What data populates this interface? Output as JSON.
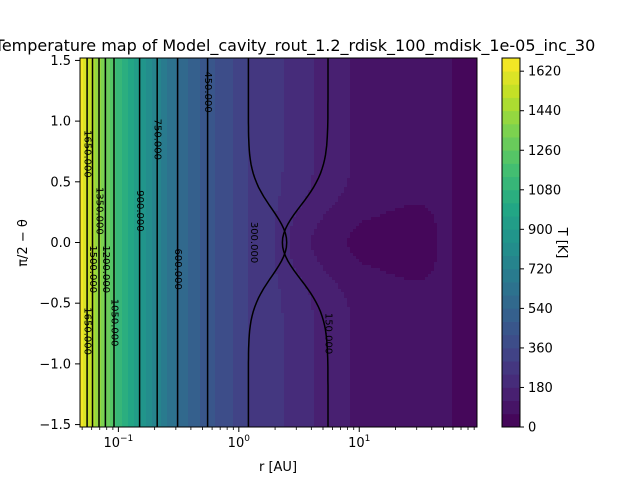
{
  "chart_data": {
    "type": "heatmap",
    "title": "Temperature map of Model_cavity_rout_1.2_rdisk_100_mdisk_1e-05_inc_30",
    "xlabel": "r [AU]",
    "ylabel": "π/2 − θ",
    "colorbar_label": "T [K]",
    "colormap": "viridis",
    "x_scale": "log",
    "xlim": [
      0.048,
      95
    ],
    "ylim": [
      -1.52,
      1.52
    ],
    "x_ticks": [
      {
        "value": 0.1,
        "base": "10",
        "exp": "−1"
      },
      {
        "value": 1,
        "base": "10",
        "exp": "0"
      },
      {
        "value": 10,
        "base": "10",
        "exp": "1"
      }
    ],
    "y_ticks": [
      {
        "value": 1.5,
        "label": "1.5"
      },
      {
        "value": 1.0,
        "label": "1.0"
      },
      {
        "value": 0.5,
        "label": "0.5"
      },
      {
        "value": 0.0,
        "label": "0.0"
      },
      {
        "value": -0.5,
        "label": "−0.5"
      },
      {
        "value": -1.0,
        "label": "−1.0"
      },
      {
        "value": -1.5,
        "label": "−1.5"
      }
    ],
    "colorbar_range": [
      0,
      1680
    ],
    "colorbar_levels_step": 60,
    "colorbar_ticks": [
      0,
      180,
      360,
      540,
      720,
      900,
      1080,
      1260,
      1440,
      1620
    ],
    "temperature_profile": {
      "r": [
        0.048,
        0.06,
        0.08,
        0.1,
        0.15,
        0.2,
        0.3,
        0.4,
        0.55,
        0.8,
        1.2,
        1.8,
        2.5,
        3.5,
        5.5,
        10,
        20,
        45,
        95
      ],
      "T": [
        1660,
        1500,
        1300,
        1110,
        900,
        760,
        600,
        520,
        450,
        380,
        300,
        260,
        235,
        200,
        150,
        110,
        90,
        70,
        40
      ]
    },
    "midplane_cavity": {
      "r_min": 2.0,
      "r_max": 50,
      "T_drop": 65,
      "width": 0.22
    },
    "contours": [
      {
        "level": 1650,
        "label": "1650.000",
        "r": 0.055,
        "label_positions": [
          [
            0.055,
            0.73
          ],
          [
            0.055,
            -0.73
          ]
        ]
      },
      {
        "level": 1500,
        "label": "1500.000",
        "r": 0.061,
        "label_positions": [
          [
            0.061,
            -0.22
          ]
        ]
      },
      {
        "level": 1350,
        "label": "1350.000",
        "r": 0.069,
        "label_positions": [
          [
            0.069,
            0.26
          ]
        ]
      },
      {
        "level": 1200,
        "label": "1200.000",
        "r": 0.078,
        "label_positions": [
          [
            0.078,
            -0.22
          ]
        ]
      },
      {
        "level": 1050,
        "label": "1050.000",
        "r": 0.092,
        "label_positions": [
          [
            0.092,
            -0.66
          ]
        ]
      },
      {
        "level": 900,
        "label": "900.000",
        "r": 0.15,
        "label_positions": [
          [
            0.15,
            0.26
          ]
        ]
      },
      {
        "level": 750,
        "label": "750.000",
        "r": 0.21,
        "label_positions": [
          [
            0.21,
            0.85
          ]
        ]
      },
      {
        "level": 600,
        "label": "600.000",
        "r": 0.31,
        "label_positions": [
          [
            0.31,
            -0.22
          ]
        ]
      },
      {
        "level": 450,
        "label": "450.000",
        "r": 0.55,
        "label_positions": [
          [
            0.55,
            1.24
          ]
        ]
      },
      {
        "level": 300,
        "label": "300.000",
        "r": 1.2,
        "label_positions": [
          [
            1.32,
            0.0
          ]
        ]
      },
      {
        "level": 150,
        "label": "150.000",
        "r": 5.5,
        "label_positions": [
          [
            5.5,
            -0.75
          ]
        ]
      }
    ],
    "contour_300_bulge": {
      "r_outer": 2.5,
      "width": 0.28
    },
    "contour_150_bulge": {
      "r_inner": 2.3,
      "width": 0.3
    }
  }
}
